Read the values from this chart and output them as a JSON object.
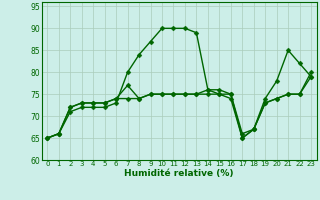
{
  "title": "",
  "xlabel": "Humidité relative (%)",
  "ylabel": "",
  "background_color": "#cceee8",
  "grid_color": "#aaccbb",
  "line_color": "#006600",
  "marker": "D",
  "markersize": 2.5,
  "linewidth": 1.0,
  "xlim": [
    -0.5,
    23.5
  ],
  "ylim": [
    60,
    96
  ],
  "yticks": [
    60,
    65,
    70,
    75,
    80,
    85,
    90,
    95
  ],
  "xticks": [
    0,
    1,
    2,
    3,
    4,
    5,
    6,
    7,
    8,
    9,
    10,
    11,
    12,
    13,
    14,
    15,
    16,
    17,
    18,
    19,
    20,
    21,
    22,
    23
  ],
  "series": [
    [
      65,
      66,
      71,
      72,
      72,
      72,
      73,
      80,
      84,
      87,
      90,
      90,
      90,
      89,
      76,
      75,
      74,
      65,
      67,
      74,
      78,
      85,
      82,
      79
    ],
    [
      65,
      66,
      72,
      73,
      73,
      73,
      74,
      77,
      74,
      75,
      75,
      75,
      75,
      75,
      75,
      75,
      75,
      66,
      67,
      73,
      74,
      75,
      75,
      79
    ],
    [
      65,
      66,
      72,
      73,
      73,
      73,
      74,
      74,
      74,
      75,
      75,
      75,
      75,
      75,
      76,
      76,
      75,
      65,
      67,
      73,
      74,
      75,
      75,
      80
    ]
  ]
}
